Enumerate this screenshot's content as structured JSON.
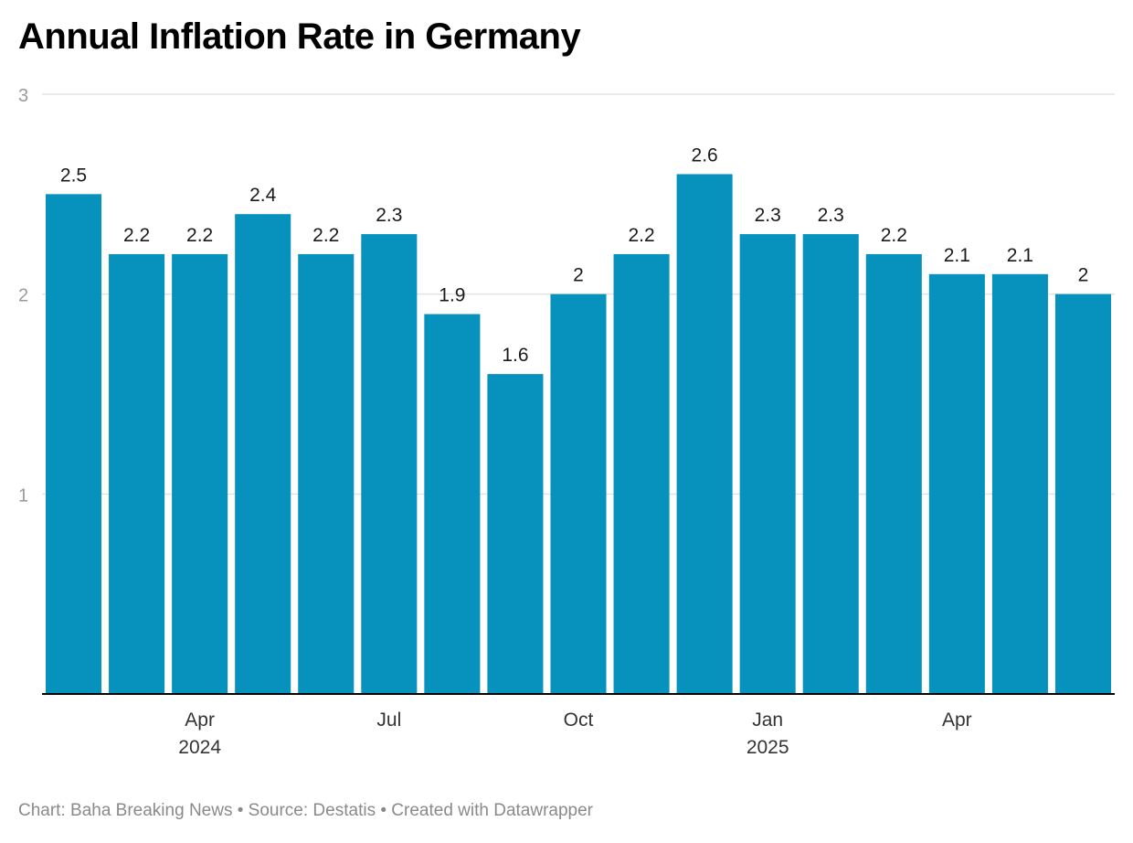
{
  "title": "Annual Inflation Rate in Germany",
  "footer": {
    "chart_by": "Chart: Baha Breaking News",
    "separator": " • ",
    "source": "Source: Destatis",
    "created_with": "Created with Datawrapper"
  },
  "colors": {
    "bar": "#0791bd",
    "grid": "#e3e3e3",
    "axis": "#000000"
  },
  "chart_data": {
    "type": "bar",
    "title": "Annual Inflation Rate in Germany",
    "xlabel": "",
    "ylabel": "",
    "x": [
      "2024-02",
      "2024-03",
      "2024-04",
      "2024-05",
      "2024-06",
      "2024-07",
      "2024-08",
      "2024-09",
      "2024-10",
      "2024-11",
      "2024-12",
      "2025-01",
      "2025-02",
      "2025-03",
      "2025-04",
      "2025-05",
      "2025-06"
    ],
    "values": [
      2.5,
      2.2,
      2.2,
      2.4,
      2.2,
      2.3,
      1.9,
      1.6,
      2.0,
      2.2,
      2.6,
      2.3,
      2.3,
      2.2,
      2.1,
      2.1,
      2.0
    ],
    "data_labels": [
      "2.5",
      "2.2",
      "2.2",
      "2.4",
      "2.2",
      "2.3",
      "1.9",
      "1.6",
      "2",
      "2.2",
      "2.6",
      "2.3",
      "2.3",
      "2.2",
      "2.1",
      "2.1",
      "2"
    ],
    "ylim": [
      0,
      3
    ],
    "y_ticks": [
      1,
      2,
      3
    ],
    "x_ticks": [
      {
        "x": "2024-04",
        "label": "Apr",
        "sublabel": "2024"
      },
      {
        "x": "2024-07",
        "label": "Jul",
        "sublabel": ""
      },
      {
        "x": "2024-10",
        "label": "Oct",
        "sublabel": ""
      },
      {
        "x": "2025-01",
        "label": "Jan",
        "sublabel": "2025"
      },
      {
        "x": "2025-04",
        "label": "Apr",
        "sublabel": ""
      }
    ],
    "grid": true,
    "legend": "none"
  }
}
